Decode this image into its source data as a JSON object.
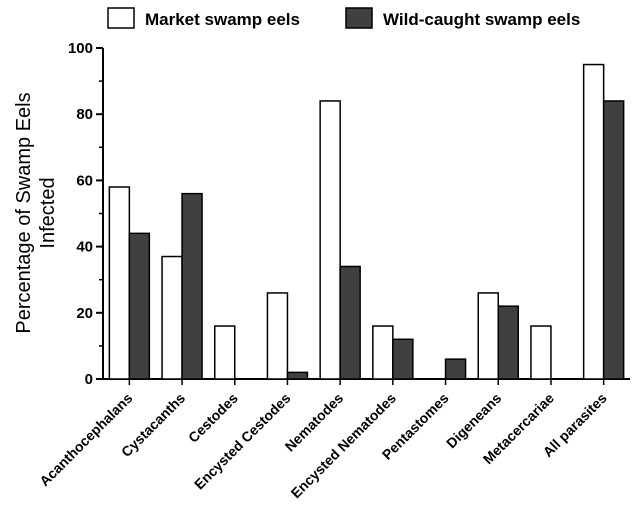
{
  "chart_data": {
    "type": "bar",
    "categories": [
      "Acanthocephalans",
      "Cystacanths",
      "Cestodes",
      "Encysted Cestodes",
      "Nematodes",
      "Encysted Nematodes",
      "Pentastomes",
      "Digeneans",
      "Metacercariae",
      "All parasites"
    ],
    "series": [
      {
        "name": "Market swamp eels",
        "color": "#ffffff",
        "values": [
          58,
          37,
          16,
          26,
          84,
          16,
          0,
          26,
          16,
          95
        ]
      },
      {
        "name": "Wild-caught swamp eels",
        "color": "#404040",
        "values": [
          44,
          56,
          0,
          2,
          34,
          12,
          6,
          22,
          0,
          84
        ]
      }
    ],
    "ylabel_lines": [
      "Percentage of Swamp Eels",
      "Infected"
    ],
    "xlabel": "",
    "ylim": [
      0,
      100
    ],
    "yticks": [
      0,
      20,
      40,
      60,
      80,
      100
    ],
    "grid": false,
    "legend_position": "top"
  }
}
